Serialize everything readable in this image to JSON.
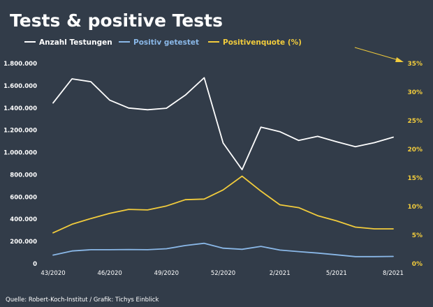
{
  "chart_data": {
    "type": "line",
    "title": "Tests & positive Tests",
    "source": "Quelle: Robert-Koch-Institut / Grafik: Tichys Einblick",
    "x": [
      "43/2020",
      "44/2020",
      "45/2020",
      "46/2020",
      "47/2020",
      "48/2020",
      "49/2020",
      "50/2020",
      "51/2020",
      "52/2020",
      "53/2020",
      "1/2021",
      "2/2021",
      "3/2021",
      "4/2021",
      "5/2021",
      "6/2021",
      "7/2021",
      "8/2021"
    ],
    "x_tick_labels": [
      "43/2020",
      "46/2020",
      "49/2020",
      "52/2020",
      "2/2021",
      "5/2021",
      "8/2021"
    ],
    "y_left": {
      "ylim": [
        0,
        1800000
      ],
      "tick_values": [
        0,
        200000,
        400000,
        600000,
        800000,
        1000000,
        1200000,
        1400000,
        1600000,
        1800000
      ],
      "tick_labels": [
        "0",
        "200.000",
        "400.000",
        "600.000",
        "800.000",
        "1.000.000",
        "1.200.000",
        "1.400.000",
        "1.600.000",
        "1.800.000"
      ]
    },
    "y_right": {
      "ylim": [
        0,
        35
      ],
      "tick_values": [
        0,
        5,
        10,
        15,
        20,
        25,
        30,
        35
      ],
      "tick_labels": [
        "0%",
        "5%",
        "10%",
        "15%",
        "20%",
        "25%",
        "30%",
        "35%"
      ]
    },
    "legend_placement": "top",
    "grid": false,
    "series": [
      {
        "name": "Anzahl Testungen",
        "axis": "left",
        "color": "#ffffff",
        "values": [
          1445000,
          1662000,
          1636000,
          1470000,
          1400000,
          1384000,
          1398000,
          1516000,
          1672000,
          1085000,
          846000,
          1228000,
          1187000,
          1108000,
          1145000,
          1097000,
          1052000,
          1088000,
          1138000
        ]
      },
      {
        "name": "Positiv getestet",
        "axis": "left",
        "color": "#8ab8e8",
        "values": [
          78000,
          115000,
          126000,
          126000,
          128000,
          126000,
          135000,
          164000,
          184000,
          140000,
          130000,
          156000,
          123000,
          109000,
          96000,
          80000,
          64000,
          64000,
          66000
        ]
      },
      {
        "name": "Positivenquote (%)",
        "axis": "right",
        "color": "#f2cc3c",
        "values": [
          5.4,
          6.9,
          7.9,
          8.8,
          9.5,
          9.4,
          10.1,
          11.2,
          11.3,
          12.9,
          15.3,
          12.7,
          10.3,
          9.8,
          8.4,
          7.5,
          6.4,
          6.1,
          6.1
        ]
      }
    ],
    "annotation": {
      "type": "arrow",
      "color": "#f2cc3c",
      "target": "35%"
    }
  }
}
